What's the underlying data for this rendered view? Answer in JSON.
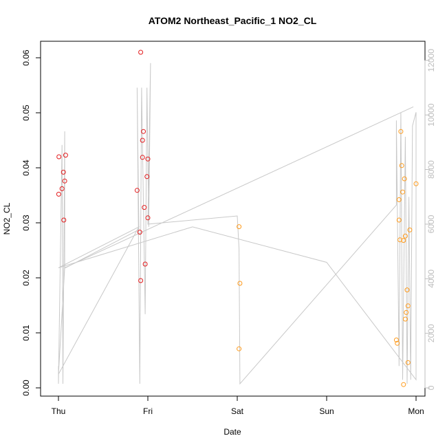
{
  "chart_data": {
    "type": "scatter",
    "title": "ATOM2 Northeast_Pacific_1 NO2_CL",
    "xlabel": "Date",
    "ylabel": "NO2_CL",
    "x_ticks": [
      "Thu",
      "Fri",
      "Sat",
      "Sun",
      "Mon"
    ],
    "xlim_days": [
      -0.2,
      4.1
    ],
    "ylim": [
      -0.0015,
      0.063
    ],
    "y_ticks": [
      0.0,
      0.01,
      0.02,
      0.03,
      0.04,
      0.05,
      0.06
    ],
    "y2lim": [
      -300,
      12700
    ],
    "y2_ticks": [
      0,
      2000,
      4000,
      6000,
      8000,
      10000,
      12000
    ],
    "colors": {
      "series_red": "#e31a1c",
      "series_orange": "#ff9a1a",
      "altitude_line": "#c8c8c8",
      "right_axis": "#bdbdbd"
    },
    "series": [
      {
        "color": "red",
        "points": [
          [
            0.005,
            0.042
          ],
          [
            0.003,
            0.0352
          ],
          [
            0.04,
            0.0362
          ],
          [
            0.055,
            0.0392
          ],
          [
            0.06,
            0.0305
          ],
          [
            0.07,
            0.0376
          ],
          [
            0.08,
            0.0423
          ],
          [
            0.88,
            0.0359
          ],
          [
            0.92,
            0.061
          ],
          [
            0.91,
            0.0283
          ],
          [
            0.92,
            0.0195
          ],
          [
            0.94,
            0.0419
          ],
          [
            0.94,
            0.045
          ],
          [
            0.95,
            0.0466
          ],
          [
            0.96,
            0.0328
          ],
          [
            0.97,
            0.0225
          ],
          [
            0.99,
            0.0384
          ],
          [
            1.0,
            0.0416
          ],
          [
            1.0,
            0.0309
          ]
        ]
      },
      {
        "color": "orange",
        "points": [
          [
            2.02,
            0.0293
          ],
          [
            2.02,
            0.0071
          ],
          [
            2.03,
            0.019
          ],
          [
            3.78,
            0.0087
          ],
          [
            3.79,
            0.0081
          ],
          [
            3.81,
            0.0305
          ],
          [
            3.81,
            0.0342
          ],
          [
            3.82,
            0.0269
          ],
          [
            3.83,
            0.0466
          ],
          [
            3.84,
            0.0404
          ],
          [
            3.85,
            0.0356
          ],
          [
            3.86,
            0.0268
          ],
          [
            3.86,
            0.0006
          ],
          [
            3.87,
            0.038
          ],
          [
            3.88,
            0.0276
          ],
          [
            3.88,
            0.0125
          ],
          [
            3.89,
            0.0137
          ],
          [
            3.9,
            0.0178
          ],
          [
            3.91,
            0.0149
          ],
          [
            3.91,
            0.0046
          ],
          [
            3.93,
            0.0287
          ],
          [
            4.0,
            0.0371
          ]
        ]
      }
    ],
    "altitude_line": [
      [
        0.0,
        800
      ],
      [
        0.0,
        150
      ],
      [
        0.04,
        8900
      ],
      [
        0.05,
        150
      ],
      [
        0.07,
        9400
      ],
      [
        0.07,
        4400
      ],
      [
        0.08,
        4400
      ],
      [
        0.9,
        5800
      ],
      [
        0.88,
        11000
      ],
      [
        0.91,
        150
      ],
      [
        0.93,
        11000
      ],
      [
        0.97,
        2700
      ],
      [
        0.99,
        11000
      ],
      [
        1.01,
        5900
      ],
      [
        1.03,
        11900
      ],
      [
        1.0,
        6000
      ],
      [
        2.0,
        6300
      ],
      [
        2.02,
        5100
      ],
      [
        2.03,
        150
      ],
      [
        3.78,
        6700
      ],
      [
        3.78,
        9800
      ],
      [
        3.81,
        800
      ],
      [
        3.83,
        10100
      ],
      [
        3.85,
        300
      ],
      [
        3.88,
        9200
      ],
      [
        3.9,
        150
      ],
      [
        3.92,
        7000
      ],
      [
        3.94,
        300
      ],
      [
        3.96,
        9600
      ],
      [
        4.0,
        10100
      ],
      [
        4.0,
        300
      ],
      [
        3.0,
        4600
      ],
      [
        1.5,
        5900
      ],
      [
        0.0,
        4400
      ],
      [
        0.9,
        5900
      ],
      [
        0.0,
        500
      ],
      [
        0.07,
        4400
      ],
      [
        3.97,
        10300
      ]
    ]
  }
}
